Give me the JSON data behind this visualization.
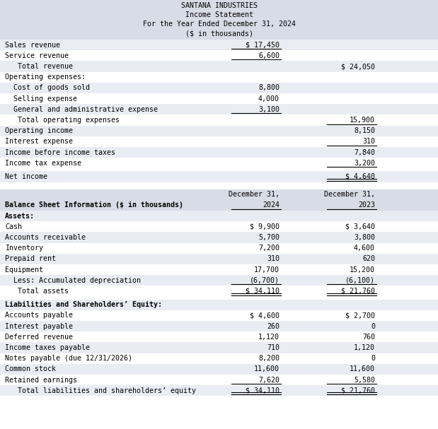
{
  "title_lines": [
    "SANTANA INDUSTRIES",
    "Income Statement",
    "For the Year Ended December 31, 2024",
    "($ in thousands)"
  ],
  "header_bg": "#d8dce6",
  "white_bg": "#ffffff",
  "light_bg": "#eaecf3",
  "income_rows": [
    {
      "label": "Sales revenue",
      "col1": "$ 17,450",
      "col2": "",
      "ul1": true,
      "ul2": false,
      "du2": false,
      "spacer_before": false
    },
    {
      "label": "Service revenue",
      "col1": "6,600",
      "col2": "",
      "ul1": true,
      "ul2": false,
      "du2": false,
      "spacer_before": false
    },
    {
      "label": "   Total revenue",
      "col1": "",
      "col2": "$ 24,050",
      "ul1": false,
      "ul2": false,
      "du2": false,
      "spacer_before": false
    },
    {
      "label": "Operating expenses:",
      "col1": "",
      "col2": "",
      "ul1": false,
      "ul2": false,
      "du2": false,
      "spacer_before": false
    },
    {
      "label": "  Cost of goods sold",
      "col1": "8,800",
      "col2": "",
      "ul1": false,
      "ul2": false,
      "du2": false,
      "spacer_before": false
    },
    {
      "label": "  Selling expense",
      "col1": "4,000",
      "col2": "",
      "ul1": false,
      "ul2": false,
      "du2": false,
      "spacer_before": false
    },
    {
      "label": "  General and administrative expense",
      "col1": "3,100",
      "col2": "",
      "ul1": true,
      "ul2": false,
      "du2": false,
      "spacer_before": false
    },
    {
      "label": "   Total operating expenses",
      "col1": "",
      "col2": "15,900",
      "ul1": false,
      "ul2": true,
      "du2": false,
      "spacer_before": false
    },
    {
      "label": "Operating income",
      "col1": "",
      "col2": "8,150",
      "ul1": false,
      "ul2": false,
      "du2": false,
      "spacer_before": false
    },
    {
      "label": "Interest expense",
      "col1": "",
      "col2": "310",
      "ul1": false,
      "ul2": true,
      "du2": false,
      "spacer_before": false
    },
    {
      "label": "Income before income taxes",
      "col1": "",
      "col2": "7,840",
      "ul1": false,
      "ul2": false,
      "du2": false,
      "spacer_before": false
    },
    {
      "label": "Income tax expense",
      "col1": "",
      "col2": "3,200",
      "ul1": false,
      "ul2": true,
      "du2": false,
      "spacer_before": false
    },
    {
      "label": "Net income",
      "col1": "",
      "col2": "$ 4,640",
      "ul1": false,
      "ul2": false,
      "du2": true,
      "spacer_before": true
    }
  ],
  "bs_header": "Balance Sheet Information ($ in thousands)",
  "bs_rows": [
    {
      "label": "Assets:",
      "col1": "",
      "col2": "",
      "bold": true,
      "ul1": false,
      "ul2": false,
      "du1": false,
      "du2": false,
      "spacer_before": false
    },
    {
      "label": "Cash",
      "col1": "$ 9,900",
      "col2": "$ 3,640",
      "bold": false,
      "ul1": false,
      "ul2": false,
      "du1": false,
      "du2": false,
      "spacer_before": false
    },
    {
      "label": "Accounts receivable",
      "col1": "5,700",
      "col2": "3,800",
      "bold": false,
      "ul1": false,
      "ul2": false,
      "du1": false,
      "du2": false,
      "spacer_before": false
    },
    {
      "label": "Inventory",
      "col1": "7,200",
      "col2": "4,600",
      "bold": false,
      "ul1": false,
      "ul2": false,
      "du1": false,
      "du2": false,
      "spacer_before": false
    },
    {
      "label": "Prepaid rent",
      "col1": "310",
      "col2": "620",
      "bold": false,
      "ul1": false,
      "ul2": false,
      "du1": false,
      "du2": false,
      "spacer_before": false
    },
    {
      "label": "Equipment",
      "col1": "17,700",
      "col2": "15,200",
      "bold": false,
      "ul1": false,
      "ul2": false,
      "du1": false,
      "du2": false,
      "spacer_before": false
    },
    {
      "label": "  Less: Accumulated depreciation",
      "col1": "(6,700)",
      "col2": "(6,100)",
      "bold": false,
      "ul1": true,
      "ul2": true,
      "du1": false,
      "du2": false,
      "spacer_before": false
    },
    {
      "label": "   Total assets",
      "col1": "$ 34,110",
      "col2": "$ 21,760",
      "bold": false,
      "ul1": false,
      "ul2": false,
      "du1": true,
      "du2": true,
      "spacer_before": false
    },
    {
      "label": "Liabilities and Shareholders’ Equity:",
      "col1": "",
      "col2": "",
      "bold": true,
      "ul1": false,
      "ul2": false,
      "du1": false,
      "du2": false,
      "spacer_before": true
    },
    {
      "label": "Accounts payable",
      "col1": "$ 4,600",
      "col2": "$ 2,700",
      "bold": false,
      "ul1": false,
      "ul2": false,
      "du1": false,
      "du2": false,
      "spacer_before": false
    },
    {
      "label": "Interest payable",
      "col1": "260",
      "col2": "0",
      "bold": false,
      "ul1": false,
      "ul2": false,
      "du1": false,
      "du2": false,
      "spacer_before": false
    },
    {
      "label": "Deferred revenue",
      "col1": "1,120",
      "col2": "760",
      "bold": false,
      "ul1": false,
      "ul2": false,
      "du1": false,
      "du2": false,
      "spacer_before": false
    },
    {
      "label": "Income taxes payable",
      "col1": "710",
      "col2": "1,120",
      "bold": false,
      "ul1": false,
      "ul2": false,
      "du1": false,
      "du2": false,
      "spacer_before": false
    },
    {
      "label": "Notes payable (due 12/31/2026)",
      "col1": "8,200",
      "col2": "0",
      "bold": false,
      "ul1": false,
      "ul2": false,
      "du1": false,
      "du2": false,
      "spacer_before": false
    },
    {
      "label": "Common stock",
      "col1": "11,600",
      "col2": "11,600",
      "bold": false,
      "ul1": false,
      "ul2": false,
      "du1": false,
      "du2": false,
      "spacer_before": false
    },
    {
      "label": "Retained earnings",
      "col1": "7,620",
      "col2": "5,580",
      "bold": false,
      "ul1": true,
      "ul2": true,
      "du1": false,
      "du2": false,
      "spacer_before": false
    },
    {
      "label": "   Total liabilities and shareholders’ equity",
      "col1": "$ 34,110",
      "col2": "$ 21,760",
      "bold": false,
      "ul1": false,
      "ul2": false,
      "du1": true,
      "du2": true,
      "spacer_before": false
    }
  ]
}
